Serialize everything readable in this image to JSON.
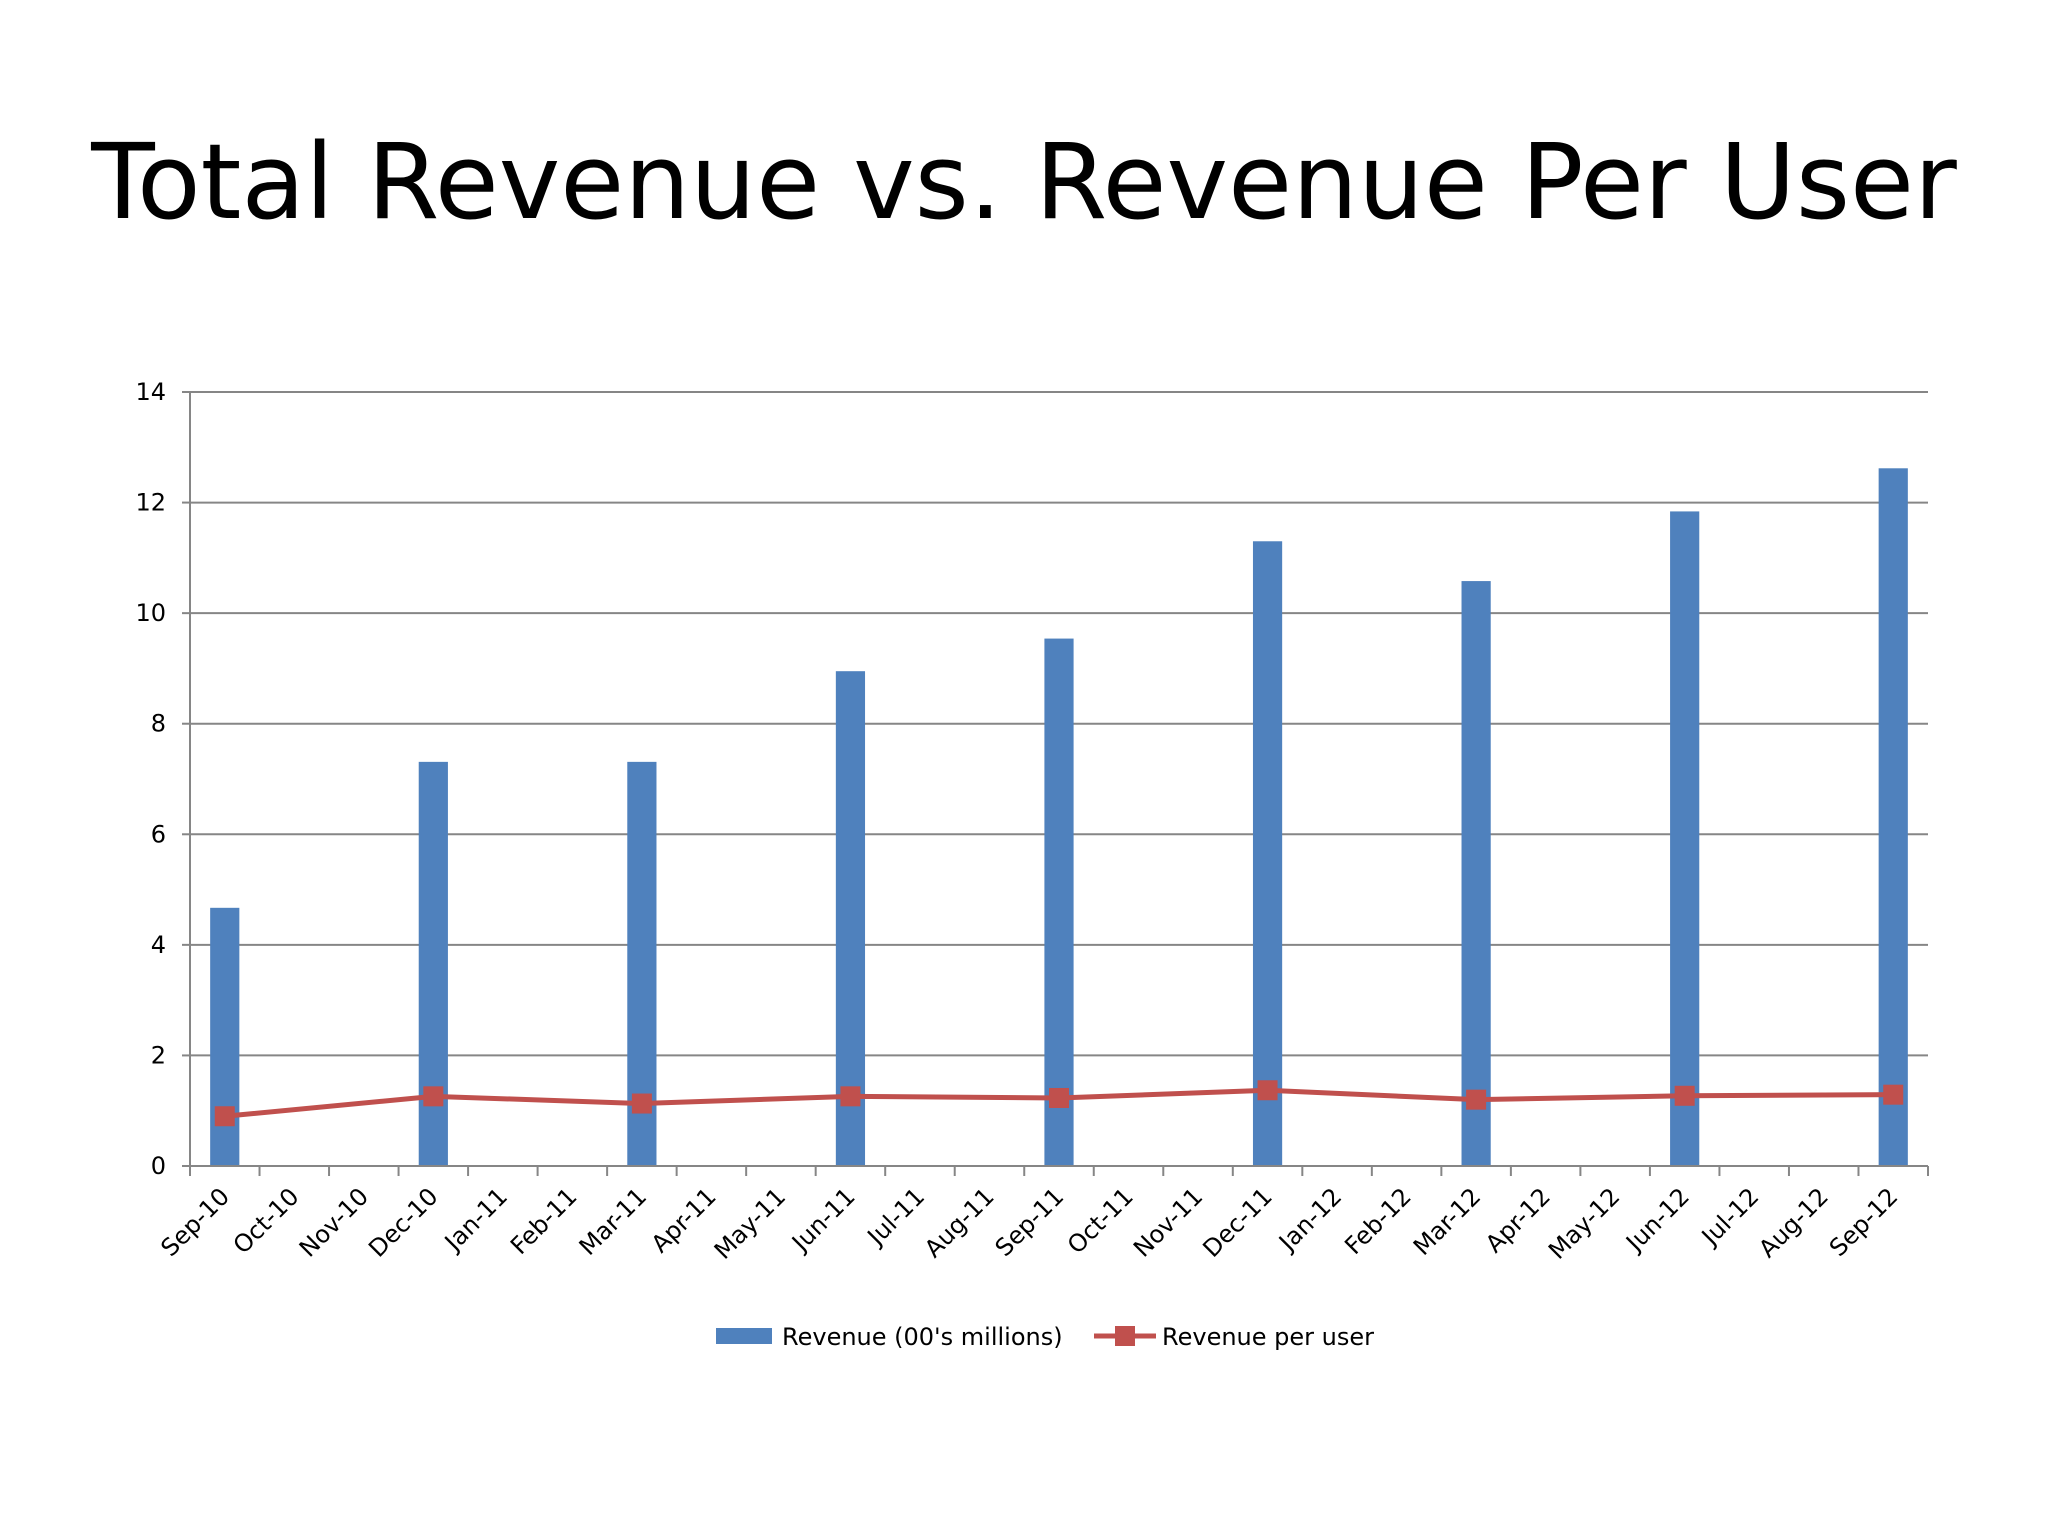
{
  "slide": {
    "title": "Total Revenue vs. Revenue Per User"
  },
  "chart_data": {
    "type": "bar",
    "title": "",
    "xlabel": "",
    "ylabel": "",
    "ylim": [
      0,
      14
    ],
    "yticks": [
      0,
      2,
      4,
      6,
      8,
      10,
      12,
      14
    ],
    "grid": true,
    "legend_position": "bottom",
    "categories": [
      "Sep-10",
      "Oct-10",
      "Nov-10",
      "Dec-10",
      "Jan-11",
      "Feb-11",
      "Mar-11",
      "Apr-11",
      "May-11",
      "Jun-11",
      "Jul-11",
      "Aug-11",
      "Sep-11",
      "Oct-11",
      "Nov-11",
      "Dec-11",
      "Jan-12",
      "Feb-12",
      "Mar-12",
      "Apr-12",
      "May-12",
      "Jun-12",
      "Jul-12",
      "Aug-12",
      "Sep-12"
    ],
    "series": [
      {
        "name": "Revenue (00's millions)",
        "type": "bar",
        "color": "#4F81BD",
        "points": [
          {
            "x": "Sep-10",
            "y": 4.67
          },
          {
            "x": "Dec-10",
            "y": 7.31
          },
          {
            "x": "Mar-11",
            "y": 7.31
          },
          {
            "x": "Jun-11",
            "y": 8.95
          },
          {
            "x": "Sep-11",
            "y": 9.54
          },
          {
            "x": "Dec-11",
            "y": 11.3
          },
          {
            "x": "Mar-12",
            "y": 10.58
          },
          {
            "x": "Jun-12",
            "y": 11.84
          },
          {
            "x": "Sep-12",
            "y": 12.62
          }
        ]
      },
      {
        "name": "Revenue per user",
        "type": "line",
        "color": "#C0504D",
        "marker": "square",
        "points": [
          {
            "x": "Sep-10",
            "y": 0.9
          },
          {
            "x": "Dec-10",
            "y": 1.26
          },
          {
            "x": "Mar-11",
            "y": 1.13
          },
          {
            "x": "Jun-11",
            "y": 1.26
          },
          {
            "x": "Sep-11",
            "y": 1.23
          },
          {
            "x": "Dec-11",
            "y": 1.37
          },
          {
            "x": "Mar-12",
            "y": 1.2
          },
          {
            "x": "Jun-12",
            "y": 1.27
          },
          {
            "x": "Sep-12",
            "y": 1.29
          }
        ]
      }
    ]
  }
}
